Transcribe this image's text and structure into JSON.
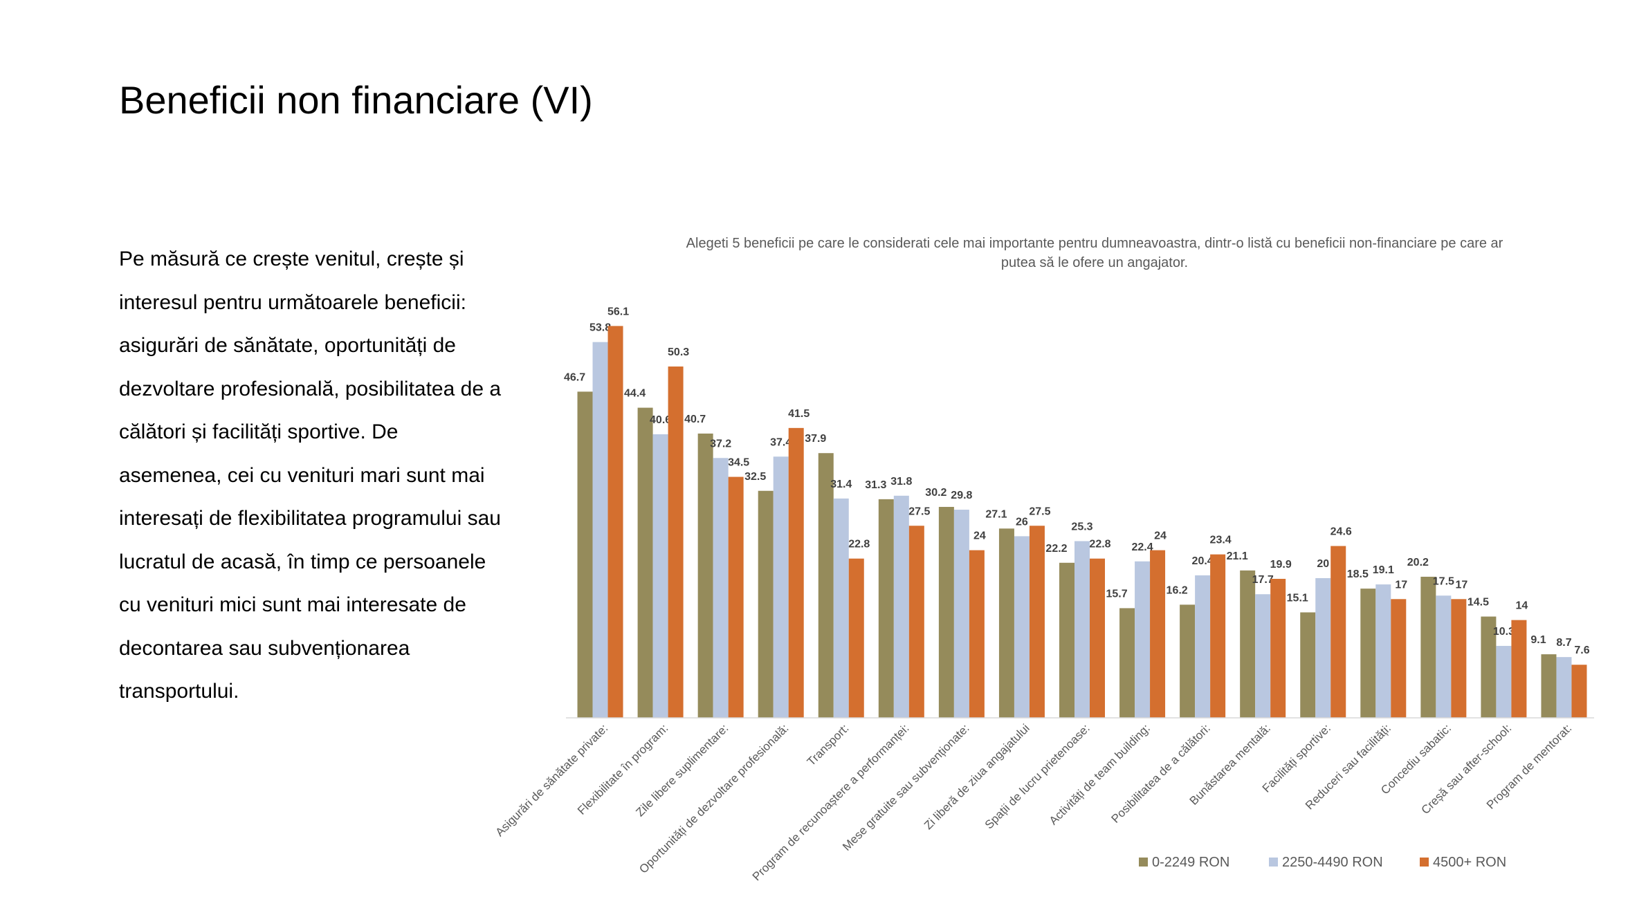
{
  "slide": {
    "title": "Beneficii non financiare (VI)",
    "body": "Pe măsură ce crește venitul, crește și interesul pentru următoarele beneficii: asigurări de sănătate, oportunități de dezvoltare profesională, posibilitatea de a călători și facilități sportive.  De asemenea, cei cu venituri mari sunt mai interesați de flexibilitatea programului sau lucratul de acasă, în timp ce persoanele cu venituri mici sunt mai interesate de decontarea sau subvenționarea transportului."
  },
  "chart_data": {
    "type": "bar",
    "title_lines": [
      "Alegeti 5 beneficii pe care le considerati cele mai importante pentru dumneavoastra, dintr-o listă cu beneficii non-financiare pe care ar",
      "putea să le ofere un angajator."
    ],
    "categories": [
      "Asigurări de sănătate private:",
      "Flexibilitate în program:",
      "Zile libere suplimentare:",
      "Oportunități de dezvoltare profesională:",
      "Transport:",
      "Program de recunoaștere a performanței:",
      "Mese gratuite sau subvenționate:",
      "Zi liberă de ziua angajatului",
      "Spații de lucru prietenoase:",
      "Activități de team building:",
      "Posibilitatea de a călători:",
      "Bunăstarea mentală:",
      "Facilități sportive:",
      "Reduceri sau facilități:",
      "Concediu sabatic:",
      "Creșă sau after-school:",
      "Program de mentorat:"
    ],
    "series": [
      {
        "name": "0-2249 RON",
        "color": "#958B5B",
        "values": [
          46.7,
          44.4,
          40.7,
          32.5,
          37.9,
          31.3,
          30.2,
          27.1,
          22.2,
          15.7,
          16.2,
          21.1,
          15.1,
          18.5,
          20.2,
          14.5,
          9.1
        ]
      },
      {
        "name": "2250-4490 RON",
        "color": "#B9C7E0",
        "values": [
          53.8,
          40.6,
          37.2,
          37.4,
          31.4,
          31.8,
          29.8,
          26,
          25.3,
          22.4,
          20.4,
          17.7,
          20,
          19.1,
          17.5,
          10.3,
          8.7
        ]
      },
      {
        "name": "4500+ RON",
        "color": "#D46F2F",
        "values": [
          56.1,
          50.3,
          34.5,
          41.5,
          22.8,
          27.5,
          24,
          27.5,
          22.8,
          24,
          23.4,
          19.9,
          24.6,
          17,
          17,
          14,
          7.6
        ]
      }
    ],
    "ylim": [
      0,
      60
    ],
    "grid": false,
    "legend_position": "bottom-right",
    "data_labels": true
  }
}
